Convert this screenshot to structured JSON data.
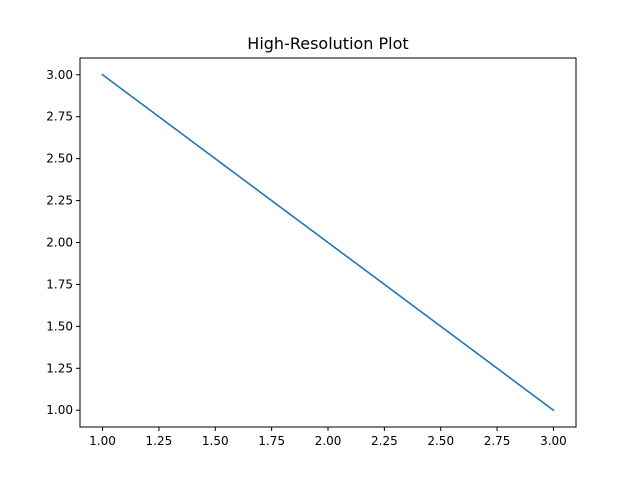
{
  "chart_data": {
    "type": "line",
    "title": "High-Resolution Plot",
    "xlabel": "",
    "ylabel": "",
    "x": [
      1,
      3
    ],
    "series": [
      {
        "values": [
          3,
          1
        ],
        "color": "#1f77b4"
      }
    ],
    "xlim": [
      0.9,
      3.1
    ],
    "ylim": [
      0.9,
      3.1
    ],
    "xticks": [
      "1.00",
      "1.25",
      "1.50",
      "1.75",
      "2.00",
      "2.25",
      "2.50",
      "2.75",
      "3.00"
    ],
    "yticks": [
      "1.00",
      "1.25",
      "1.50",
      "1.75",
      "2.00",
      "2.25",
      "2.50",
      "2.75",
      "3.00"
    ],
    "grid": false,
    "legend": "none"
  }
}
